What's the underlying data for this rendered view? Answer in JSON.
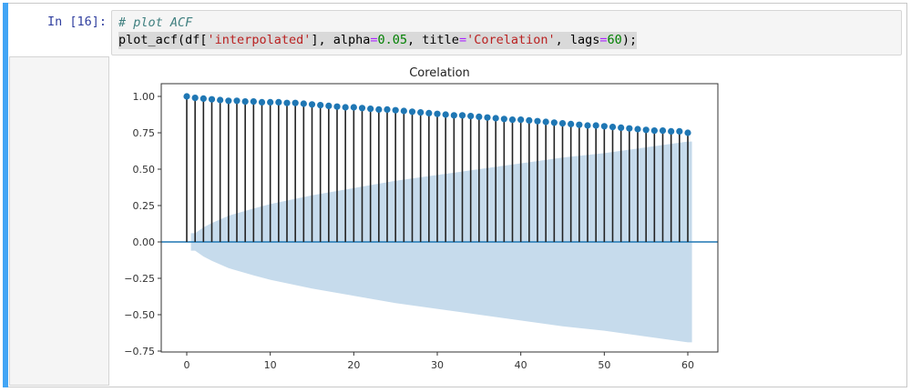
{
  "cell": {
    "prompt": "In [16]:",
    "code": {
      "line1": "# plot ACF",
      "line2_parts": {
        "fn": "plot_acf(df[",
        "col": "'interpolated'",
        "p1": "], alpha",
        "eq1": "=",
        "alpha": "0.05",
        "p2": ", title",
        "eq2": "=",
        "title": "'Corelation'",
        "p3": ", lags",
        "eq3": "=",
        "lags": "60",
        "end": ");"
      }
    }
  },
  "colors": {
    "cell_bar": "#42a5f5",
    "prompt": "#303f9f",
    "marker": "#1f77b4",
    "stem": "#000000",
    "band": "#c6dbec",
    "zero_line": "#1f77b4"
  },
  "chart_data": {
    "type": "stem",
    "title": "Corelation",
    "xlabel": "",
    "ylabel": "",
    "xlim": [
      -3,
      64
    ],
    "ylim": [
      -0.78,
      1.07
    ],
    "xticks": [
      0,
      10,
      20,
      30,
      40,
      50,
      60
    ],
    "yticks": [
      1.0,
      0.75,
      0.5,
      0.25,
      0.0,
      -0.25,
      -0.5,
      -0.75
    ],
    "ytick_labels": [
      "1.00",
      "0.75",
      "0.50",
      "0.25",
      "0.00",
      "−0.25",
      "−0.50",
      "−0.75"
    ],
    "lags": [
      0,
      1,
      2,
      3,
      4,
      5,
      6,
      7,
      8,
      9,
      10,
      11,
      12,
      13,
      14,
      15,
      16,
      17,
      18,
      19,
      20,
      21,
      22,
      23,
      24,
      25,
      26,
      27,
      28,
      29,
      30,
      31,
      32,
      33,
      34,
      35,
      36,
      37,
      38,
      39,
      40,
      41,
      42,
      43,
      44,
      45,
      46,
      47,
      48,
      49,
      50,
      51,
      52,
      53,
      54,
      55,
      56,
      57,
      58,
      59,
      60
    ],
    "acf": [
      1.0,
      0.99,
      0.985,
      0.98,
      0.975,
      0.97,
      0.97,
      0.965,
      0.965,
      0.96,
      0.96,
      0.96,
      0.955,
      0.955,
      0.95,
      0.945,
      0.94,
      0.935,
      0.93,
      0.925,
      0.925,
      0.92,
      0.915,
      0.91,
      0.91,
      0.905,
      0.9,
      0.895,
      0.89,
      0.885,
      0.88,
      0.875,
      0.87,
      0.87,
      0.865,
      0.86,
      0.855,
      0.85,
      0.845,
      0.84,
      0.84,
      0.835,
      0.83,
      0.825,
      0.82,
      0.815,
      0.81,
      0.805,
      0.8,
      0.8,
      0.795,
      0.79,
      0.785,
      0.78,
      0.775,
      0.77,
      0.765,
      0.765,
      0.76,
      0.76,
      0.75
    ],
    "confidence_band": {
      "alpha": 0.05,
      "lags": [
        0.5,
        1,
        2,
        3,
        5,
        8,
        10,
        15,
        20,
        25,
        30,
        35,
        40,
        45,
        50,
        55,
        60,
        60.5
      ],
      "upper": [
        0.06,
        0.06,
        0.1,
        0.13,
        0.18,
        0.23,
        0.26,
        0.32,
        0.37,
        0.42,
        0.46,
        0.5,
        0.54,
        0.58,
        0.61,
        0.65,
        0.69,
        0.69
      ],
      "lower": [
        -0.06,
        -0.06,
        -0.1,
        -0.13,
        -0.18,
        -0.23,
        -0.26,
        -0.32,
        -0.37,
        -0.42,
        -0.46,
        -0.5,
        -0.54,
        -0.58,
        -0.61,
        -0.65,
        -0.69,
        -0.69
      ]
    },
    "grid": false,
    "legend": null
  }
}
